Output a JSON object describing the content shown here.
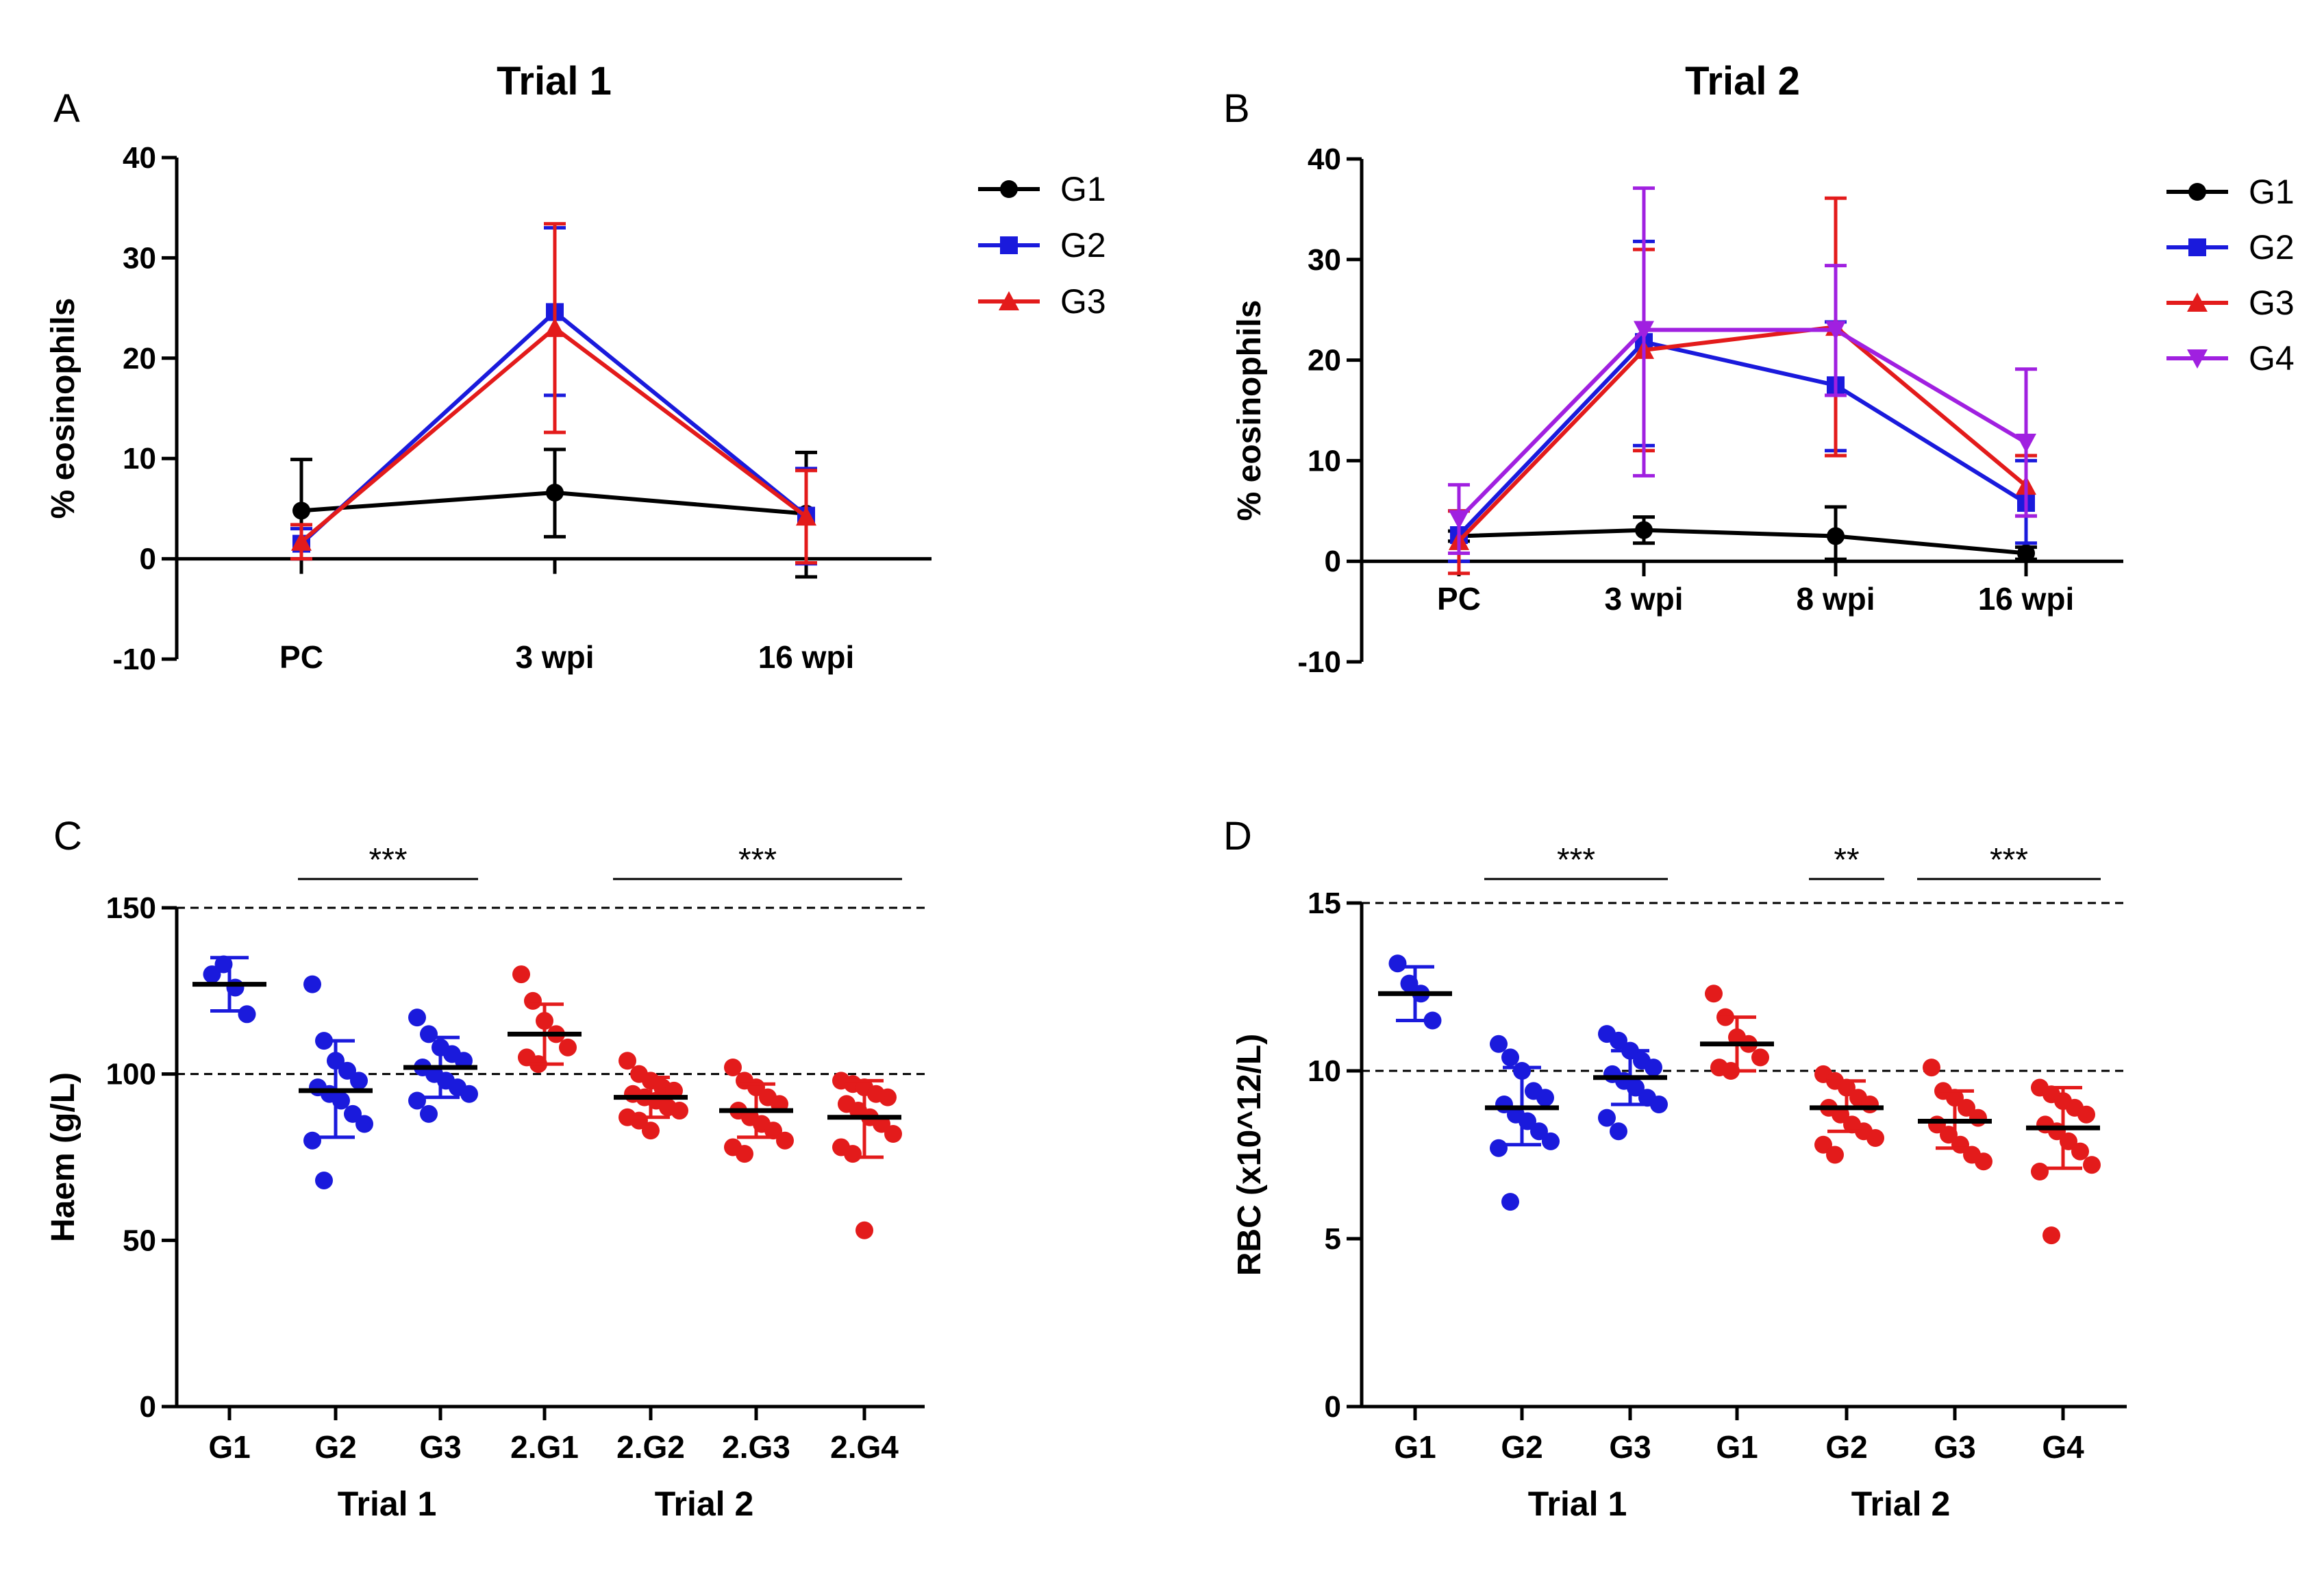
{
  "figure": {
    "panel_letters": [
      "A",
      "B",
      "C",
      "D"
    ]
  },
  "chart_data": [
    {
      "panel": "A",
      "type": "line",
      "title": "Trial 1",
      "ylabel": "% eosinophils",
      "xlabel": "",
      "ylim": [
        -10,
        40
      ],
      "yticks": [
        -10,
        0,
        10,
        20,
        30,
        40
      ],
      "categories": [
        "PC",
        "3 wpi",
        "16 wpi"
      ],
      "series": [
        {
          "name": "G1",
          "color": "#000000",
          "marker": "circle",
          "values": [
            4.8,
            6.6,
            4.5
          ],
          "err_low": [
            0,
            2.2,
            -1.8
          ],
          "err_high": [
            9.9,
            10.9,
            10.6
          ]
        },
        {
          "name": "G2",
          "color": "#1a1adc",
          "marker": "square",
          "values": [
            1.5,
            24.6,
            4.3
          ],
          "err_low": [
            0,
            16.3,
            -0.5
          ],
          "err_high": [
            3.0,
            33.0,
            9.0
          ]
        },
        {
          "name": "G3",
          "color": "#e31b1b",
          "marker": "triangle-up",
          "values": [
            1.7,
            23.0,
            4.2
          ],
          "err_low": [
            0,
            12.6,
            -0.4
          ],
          "err_high": [
            3.4,
            33.4,
            8.8
          ]
        }
      ]
    },
    {
      "panel": "B",
      "type": "line",
      "title": "Trial 2",
      "ylabel": "% eosinophils",
      "xlabel": "",
      "ylim": [
        -10,
        40
      ],
      "yticks": [
        -10,
        0,
        10,
        20,
        30,
        40
      ],
      "categories": [
        "PC",
        "3 wpi",
        "8 wpi",
        "16 wpi"
      ],
      "series": [
        {
          "name": "G1",
          "color": "#000000",
          "marker": "circle",
          "values": [
            2.5,
            3.1,
            2.5,
            0.8
          ],
          "err_low": [
            2.0,
            1.8,
            0.2,
            0.2
          ],
          "err_high": [
            3.0,
            4.4,
            5.4,
            1.4
          ]
        },
        {
          "name": "G2",
          "color": "#1a1adc",
          "marker": "square",
          "values": [
            2.6,
            21.8,
            17.5,
            5.8
          ],
          "err_low": [
            0,
            11.5,
            11.0,
            1.8
          ],
          "err_high": [
            5.0,
            31.8,
            23.8,
            10.0
          ]
        },
        {
          "name": "G3",
          "color": "#e31b1b",
          "marker": "triangle-up",
          "values": [
            2.0,
            21.0,
            23.3,
            7.5
          ],
          "err_low": [
            -1.2,
            11.0,
            10.5,
            4.5
          ],
          "err_high": [
            5.0,
            31.0,
            36.1,
            10.5
          ]
        },
        {
          "name": "G4",
          "color": "#a020e0",
          "marker": "triangle-down",
          "values": [
            4.2,
            23.0,
            23.0,
            11.8
          ],
          "err_low": [
            0.8,
            8.5,
            16.5,
            4.5
          ],
          "err_high": [
            7.6,
            37.1,
            29.4,
            19.1
          ]
        }
      ]
    },
    {
      "panel": "C",
      "type": "scatter",
      "ylabel": "Haem (g/L)",
      "ylim": [
        0,
        150
      ],
      "yticks": [
        0,
        50,
        100,
        150
      ],
      "reference_lines": [
        100,
        150
      ],
      "categories": [
        "G1",
        "G2",
        "G3",
        "2.G1",
        "2.G2",
        "2.G3",
        "2.G4"
      ],
      "group_labels": [
        "Trial 1",
        "Trial 2"
      ],
      "groups": [
        {
          "name": "G1",
          "color": "#1a1adc",
          "mean": 127,
          "sd_low": 119,
          "sd_high": 135,
          "points": [
            130,
            133,
            126,
            118
          ]
        },
        {
          "name": "G2",
          "color": "#1a1adc",
          "mean": 95,
          "sd_low": 81,
          "sd_high": 110,
          "points": [
            127,
            110,
            104,
            101,
            98,
            96,
            94,
            92,
            88,
            85,
            80,
            68
          ]
        },
        {
          "name": "G3",
          "color": "#1a1adc",
          "mean": 102,
          "sd_low": 93,
          "sd_high": 111,
          "points": [
            117,
            112,
            108,
            106,
            104,
            102,
            100,
            98,
            96,
            94,
            92,
            88
          ]
        },
        {
          "name": "2.G1",
          "color": "#e31b1b",
          "mean": 112,
          "sd_low": 103,
          "sd_high": 121,
          "points": [
            130,
            122,
            116,
            112,
            108,
            105,
            103
          ]
        },
        {
          "name": "2.G2",
          "color": "#e31b1b",
          "mean": 93,
          "sd_low": 87,
          "sd_high": 99,
          "points": [
            104,
            100,
            98,
            96,
            95,
            94,
            93,
            92,
            90,
            89,
            87,
            86,
            83
          ]
        },
        {
          "name": "2.G3",
          "color": "#e31b1b",
          "mean": 89,
          "sd_low": 81,
          "sd_high": 97,
          "points": [
            102,
            98,
            96,
            93,
            91,
            89,
            87,
            85,
            83,
            80,
            78,
            76
          ]
        },
        {
          "name": "2.G4",
          "color": "#e31b1b",
          "mean": 87,
          "sd_low": 75,
          "sd_high": 98,
          "points": [
            98,
            97,
            96,
            94,
            93,
            91,
            89,
            87,
            85,
            82,
            78,
            76,
            53
          ]
        }
      ],
      "significance": [
        {
          "from": 1,
          "to": 2,
          "label": "***"
        },
        {
          "from": 4,
          "to": 6,
          "label": "***"
        }
      ]
    },
    {
      "panel": "D",
      "type": "scatter",
      "ylabel": "RBC (x10^12/L)",
      "ylim": [
        0,
        15
      ],
      "yticks": [
        0,
        5,
        10,
        15
      ],
      "reference_lines": [
        10,
        15
      ],
      "categories": [
        "G1",
        "G2",
        "G3",
        "G1",
        "G2",
        "G3",
        "G4"
      ],
      "group_labels": [
        "Trial 1",
        "Trial 2"
      ],
      "groups": [
        {
          "name": "G1",
          "color": "#1a1adc",
          "mean": 12.3,
          "sd_low": 11.5,
          "sd_high": 13.1,
          "points": [
            13.2,
            12.6,
            12.3,
            11.5
          ]
        },
        {
          "name": "G2",
          "color": "#1a1adc",
          "mean": 8.9,
          "sd_low": 7.8,
          "sd_high": 10.1,
          "points": [
            10.8,
            10.4,
            10.0,
            9.4,
            9.2,
            9.0,
            8.7,
            8.5,
            8.2,
            7.9,
            7.7,
            6.1
          ]
        },
        {
          "name": "G3",
          "color": "#1a1adc",
          "mean": 9.8,
          "sd_low": 9.0,
          "sd_high": 10.6,
          "points": [
            11.1,
            10.9,
            10.6,
            10.3,
            10.1,
            9.9,
            9.7,
            9.5,
            9.2,
            9.0,
            8.6,
            8.2
          ]
        },
        {
          "name": "G1",
          "color": "#e31b1b",
          "mean": 10.8,
          "sd_low": 10.0,
          "sd_high": 11.6,
          "points": [
            12.3,
            11.6,
            11.0,
            10.8,
            10.4,
            10.1,
            10.0
          ]
        },
        {
          "name": "G2",
          "color": "#e31b1b",
          "mean": 8.9,
          "sd_low": 8.2,
          "sd_high": 9.7,
          "points": [
            9.9,
            9.7,
            9.5,
            9.2,
            9.0,
            8.9,
            8.7,
            8.4,
            8.2,
            8.0,
            7.8,
            7.5
          ]
        },
        {
          "name": "G3",
          "color": "#e31b1b",
          "mean": 8.5,
          "sd_low": 7.7,
          "sd_high": 9.4,
          "points": [
            10.1,
            9.4,
            9.2,
            8.9,
            8.6,
            8.4,
            8.1,
            7.8,
            7.5,
            7.3
          ]
        },
        {
          "name": "G4",
          "color": "#e31b1b",
          "mean": 8.3,
          "sd_low": 7.1,
          "sd_high": 9.5,
          "points": [
            9.5,
            9.3,
            9.1,
            8.9,
            8.7,
            8.4,
            8.2,
            7.9,
            7.6,
            7.2,
            7.0,
            5.1
          ]
        }
      ],
      "significance": [
        {
          "from": 1,
          "to": 2,
          "label": "***"
        },
        {
          "from": 4,
          "to": 4,
          "label": "**"
        },
        {
          "from": 5,
          "to": 6,
          "label": "***"
        }
      ]
    }
  ]
}
